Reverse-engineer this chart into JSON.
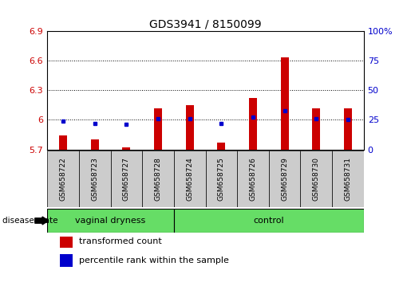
{
  "title": "GDS3941 / 8150099",
  "samples": [
    "GSM658722",
    "GSM658723",
    "GSM658727",
    "GSM658728",
    "GSM658724",
    "GSM658725",
    "GSM658726",
    "GSM658729",
    "GSM658730",
    "GSM658731"
  ],
  "red_values": [
    5.84,
    5.8,
    5.72,
    6.12,
    6.15,
    5.77,
    6.22,
    6.63,
    6.12,
    6.12
  ],
  "blue_values": [
    24,
    22,
    21,
    26,
    26,
    22,
    27,
    33,
    26,
    25
  ],
  "groups": [
    {
      "label": "vaginal dryness",
      "start": 0,
      "end": 4,
      "color": "#66dd66"
    },
    {
      "label": "control",
      "start": 4,
      "end": 10,
      "color": "#66dd66"
    }
  ],
  "ylim_left": [
    5.7,
    6.9
  ],
  "ylim_right": [
    0,
    100
  ],
  "yticks_left": [
    5.7,
    6.0,
    6.3,
    6.6,
    6.9
  ],
  "yticks_right": [
    0,
    25,
    50,
    75,
    100
  ],
  "ytick_labels_left": [
    "5.7",
    "6",
    "6.3",
    "6.6",
    "6.9"
  ],
  "ytick_labels_right": [
    "0",
    "25",
    "50",
    "75",
    "100%"
  ],
  "hlines": [
    6.0,
    6.3,
    6.6
  ],
  "bar_color": "#cc0000",
  "dot_color": "#0000cc",
  "left_axis_color": "#cc0000",
  "right_axis_color": "#0000cc",
  "disease_state_label": "disease state",
  "legend_red": "transformed count",
  "legend_blue": "percentile rank within the sample",
  "sample_box_color": "#cccccc",
  "n_samples": 10
}
